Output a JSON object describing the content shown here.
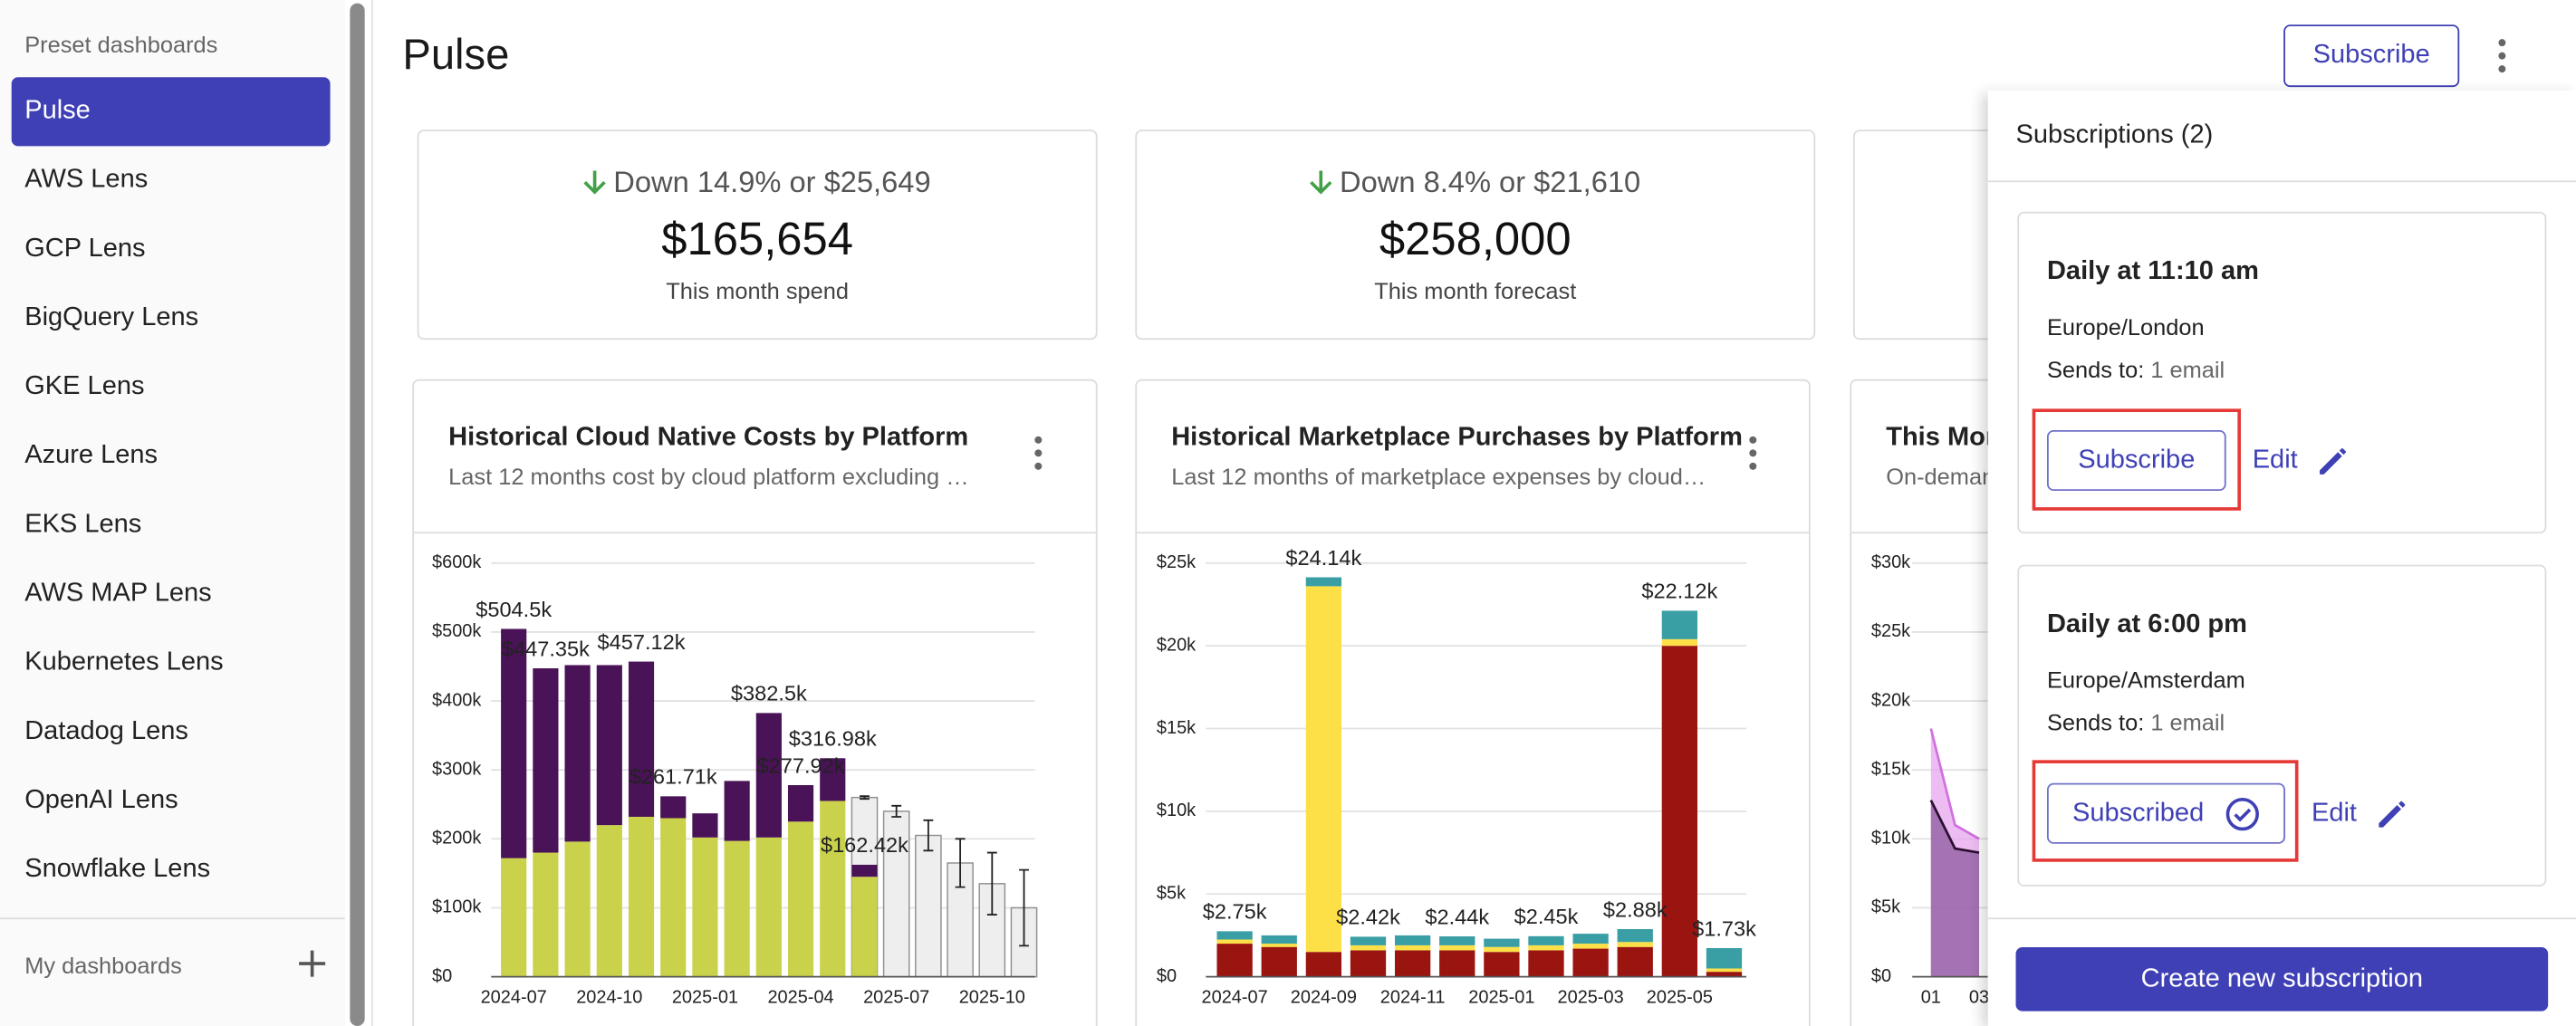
{
  "sidebar": {
    "section_title": "Preset dashboards",
    "items": [
      "Pulse",
      "AWS Lens",
      "GCP Lens",
      "BigQuery Lens",
      "GKE Lens",
      "Azure Lens",
      "EKS Lens",
      "AWS MAP Lens",
      "Kubernetes Lens",
      "Datadog Lens",
      "OpenAI Lens",
      "Snowflake Lens"
    ],
    "my_dashboards": "My dashboards"
  },
  "header": {
    "title": "Pulse",
    "subscribe_button": "Subscribe"
  },
  "kpis": [
    {
      "change": "Down 14.9% or $25,649",
      "value": "$165,654",
      "label": "This month spend"
    },
    {
      "change": "Down 8.4% or $21,610",
      "value": "$258,000",
      "label": "This month forecast"
    }
  ],
  "chart_data": [
    {
      "type": "bar",
      "title": "Historical Cloud Native Costs by Platform",
      "subtitle": "Last 12 months cost by cloud platform excluding …",
      "categories": [
        "2024-07",
        null,
        null,
        "2024-10",
        null,
        null,
        "2025-01",
        null,
        null,
        "2025-04",
        null,
        null,
        "2025-07",
        null,
        null,
        "2025-10",
        null
      ],
      "series": [
        {
          "color": "#c9d24a",
          "values": [
            172000,
            180000,
            196000,
            220000,
            232000,
            230000,
            202000,
            197000,
            202000,
            225000,
            255000,
            145000,
            null,
            null,
            null,
            null,
            null
          ]
        },
        {
          "color": "#4a1257",
          "values": [
            332500,
            267350,
            256000,
            232000,
            225120,
            31710,
            35000,
            87000,
            180500,
            52920,
            61980,
            17420,
            null,
            null,
            null,
            null,
            null
          ]
        }
      ],
      "total_labels": [
        "$504.5k",
        "$447.35k",
        null,
        null,
        "$457.12k",
        "$261.71k",
        null,
        null,
        "$382.5k",
        "$277.92k",
        "$316.98k",
        "$162.42k",
        null,
        null,
        null,
        null,
        null
      ],
      "forecast": {
        "color": "#eeeeee",
        "values": [
          null,
          null,
          null,
          null,
          null,
          null,
          null,
          null,
          null,
          null,
          null,
          260000,
          240000,
          205000,
          165000,
          135000,
          100000
        ],
        "errors": [
          null,
          null,
          null,
          null,
          null,
          null,
          null,
          null,
          null,
          null,
          null,
          2000,
          8000,
          22000,
          35000,
          45000,
          55000
        ]
      },
      "ylim": [
        0,
        600000
      ],
      "yticks": [
        {
          "value": 0,
          "label": "$0"
        },
        {
          "value": 100000,
          "label": "$100k"
        },
        {
          "value": 200000,
          "label": "$200k"
        },
        {
          "value": 300000,
          "label": "$300k"
        },
        {
          "value": 400000,
          "label": "$400k"
        },
        {
          "value": 500000,
          "label": "$500k"
        },
        {
          "value": 600000,
          "label": "$600k"
        }
      ],
      "grid": true
    },
    {
      "type": "bar",
      "title": "Historical Marketplace Purchases by Platform",
      "subtitle": "Last 12 months of marketplace expenses by cloud…",
      "categories": [
        "2024-07",
        null,
        "2024-09",
        null,
        "2024-11",
        null,
        "2025-01",
        null,
        "2025-03",
        null,
        "2025-05",
        null
      ],
      "series": [
        {
          "color": "#9a1410",
          "values": [
            2000,
            1800,
            1500,
            1600,
            1600,
            1600,
            1500,
            1600,
            1700,
            1800,
            20000,
            300
          ]
        },
        {
          "color": "#fde047",
          "values": [
            250,
            200,
            22100,
            300,
            300,
            300,
            300,
            300,
            300,
            300,
            400,
            200
          ]
        },
        {
          "color": "#3a9ea5",
          "values": [
            500,
            500,
            540,
            520,
            600,
            540,
            500,
            550,
            600,
            780,
            1720,
            1230
          ]
        }
      ],
      "total_labels": [
        "$2.75k",
        null,
        "$24.14k",
        "$2.42k",
        null,
        "$2.44k",
        null,
        "$2.45k",
        null,
        "$2.88k",
        "$22.12k",
        "$1.73k"
      ],
      "ylim": [
        0,
        25000
      ],
      "yticks": [
        {
          "value": 0,
          "label": "$0"
        },
        {
          "value": 5000,
          "label": "$5k"
        },
        {
          "value": 10000,
          "label": "$10k"
        },
        {
          "value": 15000,
          "label": "$15k"
        },
        {
          "value": 20000,
          "label": "$20k"
        },
        {
          "value": 25000,
          "label": "$25k"
        }
      ],
      "grid": true
    },
    {
      "type": "area",
      "title": "This Mon",
      "subtitle": "On-deman",
      "categories": [
        "01",
        null,
        "03"
      ],
      "series": [
        {
          "color": "#e7a6ee",
          "values": [
            18000,
            11000,
            10000
          ]
        },
        {
          "color": "#8c5a9e",
          "values": [
            12800,
            9300,
            9000
          ]
        }
      ],
      "ylim": [
        0,
        30000
      ],
      "yticks": [
        {
          "value": 0,
          "label": "$0"
        },
        {
          "value": 5000,
          "label": "$5k"
        },
        {
          "value": 10000,
          "label": "$10k"
        },
        {
          "value": 15000,
          "label": "$15k"
        },
        {
          "value": 20000,
          "label": "$20k"
        },
        {
          "value": 25000,
          "label": "$25k"
        },
        {
          "value": 30000,
          "label": "$30k"
        }
      ],
      "grid": true
    }
  ],
  "subscriptions": {
    "title": "Subscriptions (2)",
    "items": [
      {
        "schedule": "Daily at 11:10 am",
        "timezone": "Europe/London",
        "sends_label": "Sends to:",
        "sends_value": "1 email",
        "button": "Subscribe",
        "edit": "Edit"
      },
      {
        "schedule": "Daily at 6:00 pm",
        "timezone": "Europe/Amsterdam",
        "sends_label": "Sends to:",
        "sends_value": "1 email",
        "button": "Subscribed",
        "edit": "Edit"
      }
    ],
    "create_button": "Create new subscription"
  }
}
